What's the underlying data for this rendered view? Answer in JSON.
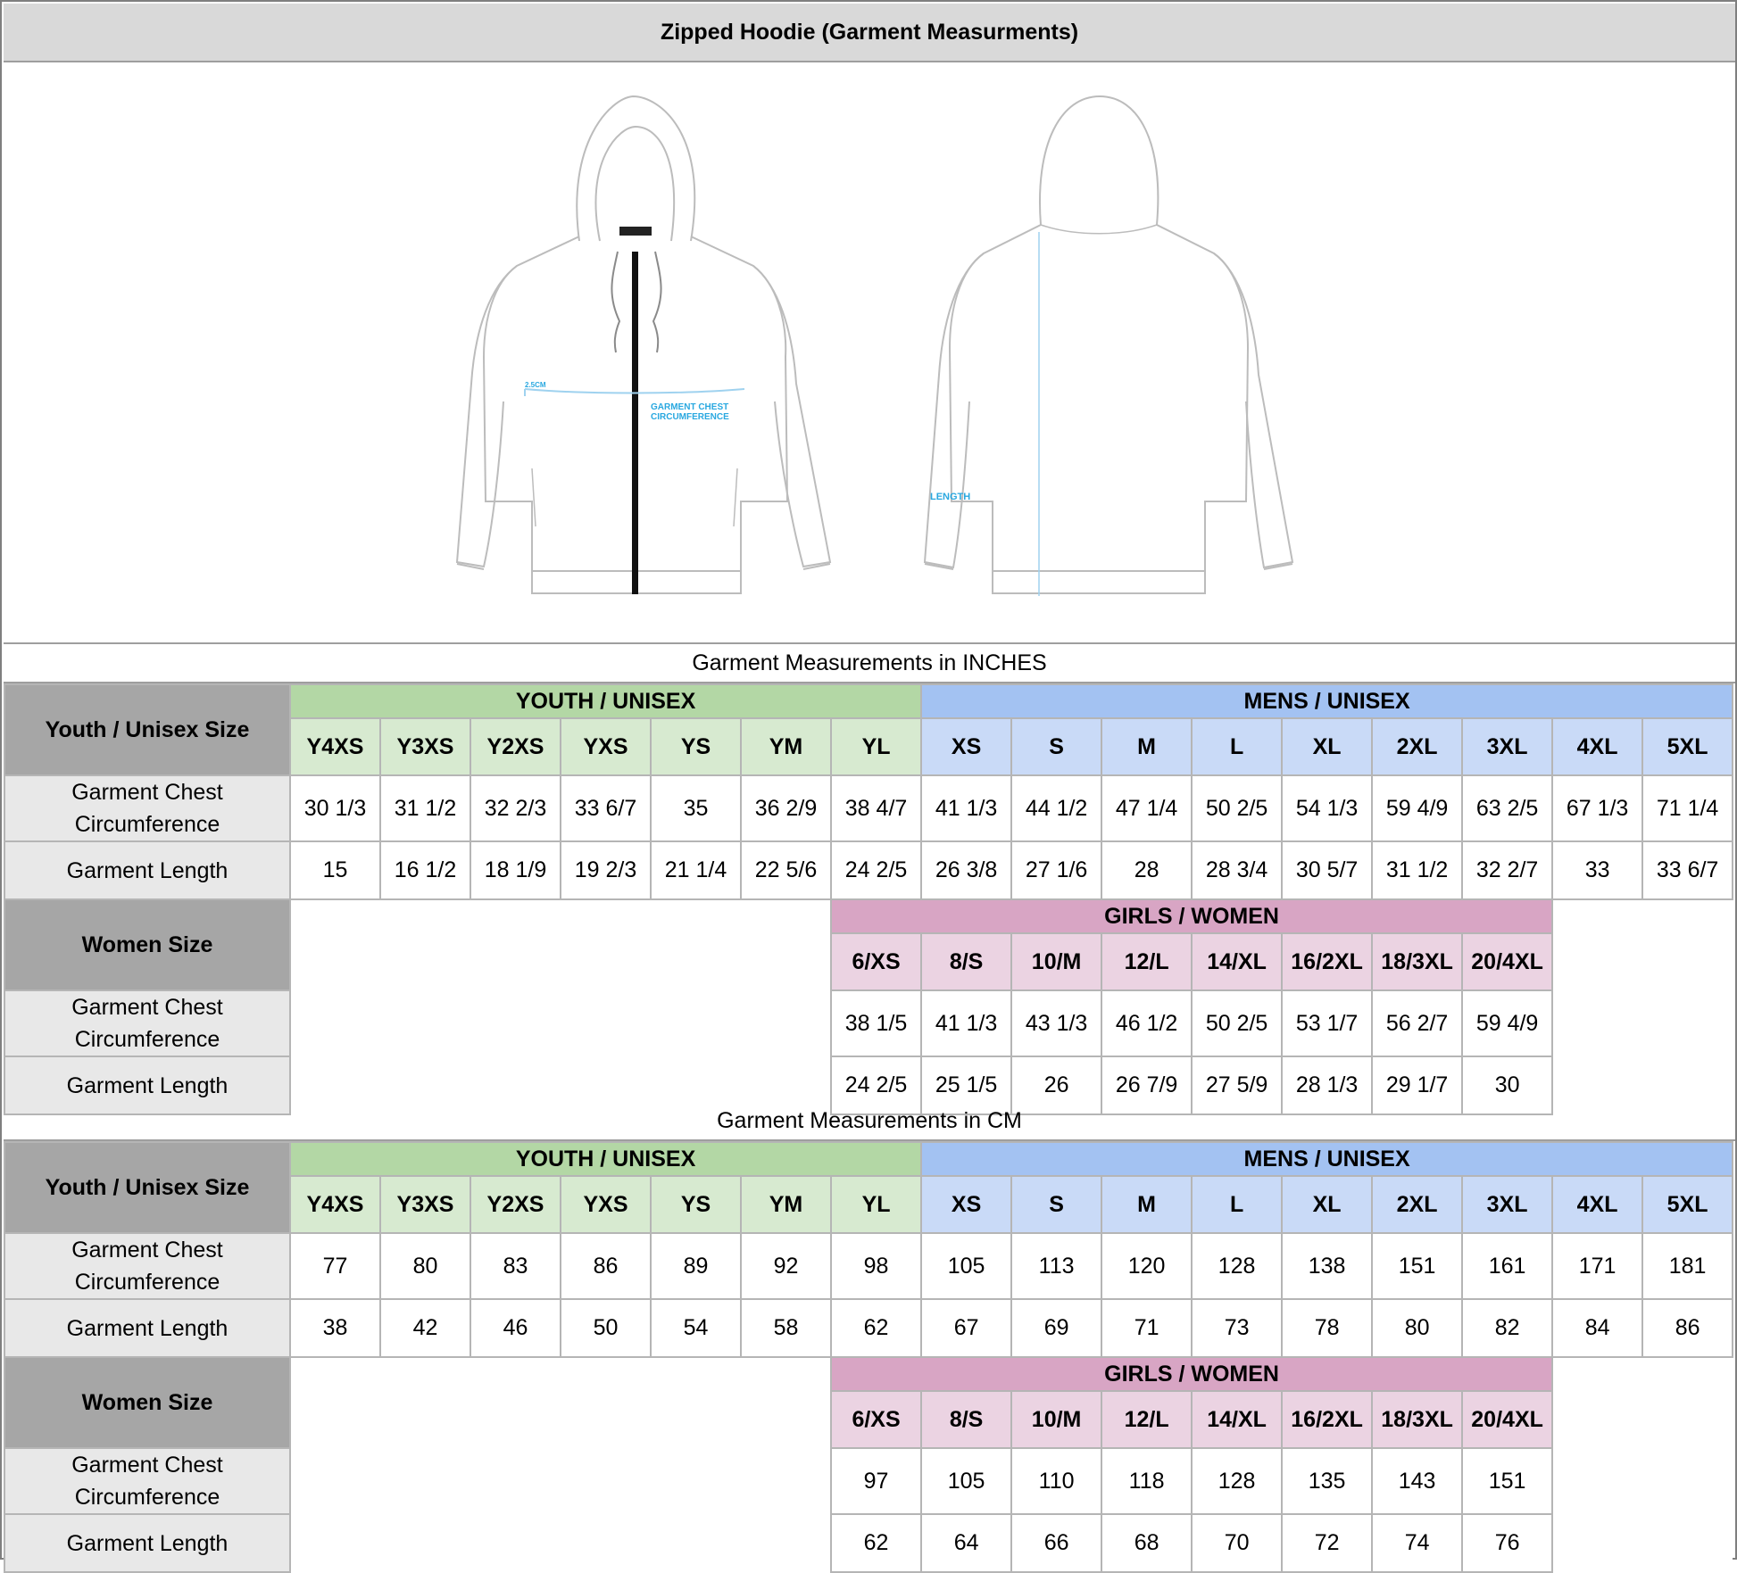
{
  "title": "Zipped Hoodie (Garment Measurments)",
  "illustration": {
    "front_label_small": "2.5CM",
    "front_label_line1": "GARMENT CHEST",
    "front_label_line2": "CIRCUMFERENCE",
    "back_label": "LENGTH"
  },
  "inches": {
    "caption": "Garment Measurements in INCHES",
    "youth_label": "Youth / Unisex Size",
    "youth_group": "YOUTH / UNISEX",
    "mens_group": "MENS / UNISEX",
    "youth_sizes": [
      "Y4XS",
      "Y3XS",
      "Y2XS",
      "YXS",
      "YS",
      "YM",
      "YL"
    ],
    "mens_sizes": [
      "XS",
      "S",
      "M",
      "L",
      "XL",
      "2XL",
      "3XL",
      "4XL",
      "5XL"
    ],
    "chest_label": "Garment Chest Circumference",
    "length_label": "Garment Length",
    "youth_chest": [
      "30 1/3",
      "31 1/2",
      "32 2/3",
      "33 6/7",
      "35",
      "36 2/9",
      "38 4/7"
    ],
    "mens_chest": [
      "41 1/3",
      "44 1/2",
      "47 1/4",
      "50 2/5",
      "54 1/3",
      "59 4/9",
      "63 2/5",
      "67 1/3",
      "71 1/4"
    ],
    "youth_length": [
      "15",
      "16 1/2",
      "18 1/9",
      "19 2/3",
      "21 1/4",
      "22 5/6",
      "24 2/5"
    ],
    "mens_length": [
      "26 3/8",
      "27 1/6",
      "28",
      "28 3/4",
      "30 5/7",
      "31 1/2",
      "32 2/7",
      "33",
      "33 6/7"
    ],
    "women_label": "Women Size",
    "girls_group": "GIRLS / WOMEN",
    "girls_sizes": [
      "6/XS",
      "8/S",
      "10/M",
      "12/L",
      "14/XL",
      "16/2XL",
      "18/3XL",
      "20/4XL"
    ],
    "girls_chest": [
      "38 1/5",
      "41 1/3",
      "43 1/3",
      "46 1/2",
      "50 2/5",
      "53 1/7",
      "56 2/7",
      "59 4/9"
    ],
    "girls_length": [
      "24 2/5",
      "25 1/5",
      "26",
      "26 7/9",
      "27 5/9",
      "28 1/3",
      "29 1/7",
      "30"
    ]
  },
  "cm": {
    "caption": "Garment Measurements in CM",
    "youth_label": "Youth / Unisex Size",
    "youth_group": "YOUTH / UNISEX",
    "mens_group": "MENS / UNISEX",
    "youth_sizes": [
      "Y4XS",
      "Y3XS",
      "Y2XS",
      "YXS",
      "YS",
      "YM",
      "YL"
    ],
    "mens_sizes": [
      "XS",
      "S",
      "M",
      "L",
      "XL",
      "2XL",
      "3XL",
      "4XL",
      "5XL"
    ],
    "chest_label": "Garment Chest Circumference",
    "length_label": "Garment Length",
    "youth_chest": [
      "77",
      "80",
      "83",
      "86",
      "89",
      "92",
      "98"
    ],
    "mens_chest": [
      "105",
      "113",
      "120",
      "128",
      "138",
      "151",
      "161",
      "171",
      "181"
    ],
    "youth_length": [
      "38",
      "42",
      "46",
      "50",
      "54",
      "58",
      "62"
    ],
    "mens_length": [
      "67",
      "69",
      "71",
      "73",
      "78",
      "80",
      "82",
      "84",
      "86"
    ],
    "women_label": "Women Size",
    "girls_group": "GIRLS / WOMEN",
    "girls_sizes": [
      "6/XS",
      "8/S",
      "10/M",
      "12/L",
      "14/XL",
      "16/2XL",
      "18/3XL",
      "20/4XL"
    ],
    "girls_chest": [
      "97",
      "105",
      "110",
      "118",
      "128",
      "135",
      "143",
      "151"
    ],
    "girls_length": [
      "62",
      "64",
      "66",
      "68",
      "70",
      "72",
      "74",
      "76"
    ]
  }
}
